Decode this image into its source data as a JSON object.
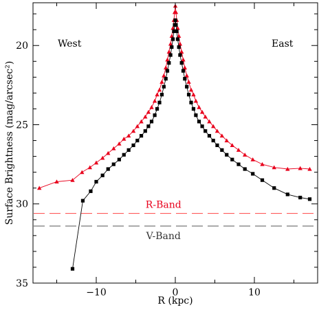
{
  "chart_data": {
    "type": "line",
    "xlabel": "R (kpc)",
    "ylabel": "Surface Brightness (mag/arcsec²)",
    "xlim": [
      -18,
      18
    ],
    "ylim": [
      35,
      17.3
    ],
    "y_inverted": true,
    "x_ticks": [
      -10,
      0,
      10
    ],
    "y_ticks": [
      20,
      25,
      30,
      35
    ],
    "grid": false,
    "annotations": {
      "west": "West",
      "east": "East",
      "r_band": "R-Band",
      "v_band": "V-Band"
    },
    "sky_levels": [
      {
        "name": "R-Band",
        "y": 30.6,
        "color": "#ff5a5a",
        "style": "dashed"
      },
      {
        "name": "V-Band",
        "y": 31.4,
        "color": "#777777",
        "style": "dashed"
      }
    ],
    "series": [
      {
        "color": "#e8001c",
        "marker": "triangle",
        "x": [
          -17.2,
          -15.0,
          -13.0,
          -11.8,
          -10.8,
          -10.0,
          -9.2,
          -8.5,
          -7.8,
          -7.1,
          -6.5,
          -5.9,
          -5.3,
          -4.8,
          -4.3,
          -3.8,
          -3.4,
          -3.0,
          -2.6,
          -2.3,
          -2.0,
          -1.7,
          -1.45,
          -1.2,
          -1.0,
          -0.8,
          -0.6,
          -0.45,
          -0.3,
          -0.18,
          -0.08,
          0.0,
          0.08,
          0.18,
          0.3,
          0.45,
          0.6,
          0.8,
          1.0,
          1.2,
          1.45,
          1.7,
          2.0,
          2.3,
          2.6,
          3.0,
          3.4,
          3.8,
          4.3,
          4.8,
          5.3,
          5.9,
          6.5,
          7.2,
          8.0,
          8.8,
          9.8,
          11.0,
          12.5,
          14.2,
          15.8,
          17.0
        ],
        "y": [
          29.0,
          28.6,
          28.5,
          28.0,
          27.7,
          27.4,
          27.1,
          26.8,
          26.5,
          26.2,
          25.9,
          25.7,
          25.4,
          25.1,
          24.8,
          24.5,
          24.2,
          23.9,
          23.5,
          23.1,
          22.8,
          22.3,
          21.9,
          21.4,
          20.9,
          20.4,
          19.9,
          19.4,
          18.9,
          18.4,
          17.9,
          17.5,
          17.9,
          18.4,
          18.9,
          19.4,
          19.9,
          20.4,
          20.9,
          21.4,
          21.9,
          22.3,
          22.8,
          23.1,
          23.5,
          23.9,
          24.2,
          24.5,
          24.8,
          25.1,
          25.4,
          25.7,
          26.0,
          26.3,
          26.6,
          26.9,
          27.2,
          27.5,
          27.7,
          27.8,
          27.75,
          27.8
        ]
      },
      {
        "color": "#000000",
        "marker": "square",
        "x": [
          -13.0,
          -11.7,
          -10.7,
          -10.0,
          -9.2,
          -8.5,
          -7.8,
          -7.1,
          -6.5,
          -5.9,
          -5.3,
          -4.8,
          -4.3,
          -3.8,
          -3.4,
          -3.0,
          -2.6,
          -2.3,
          -2.0,
          -1.7,
          -1.45,
          -1.2,
          -1.0,
          -0.8,
          -0.6,
          -0.45,
          -0.3,
          -0.18,
          -0.08,
          0.0,
          0.08,
          0.18,
          0.3,
          0.45,
          0.6,
          0.8,
          1.0,
          1.2,
          1.45,
          1.7,
          2.0,
          2.3,
          2.6,
          3.0,
          3.4,
          3.8,
          4.3,
          4.8,
          5.3,
          5.9,
          6.5,
          7.2,
          8.0,
          8.8,
          9.8,
          11.0,
          12.5,
          14.2,
          15.8,
          17.0
        ],
        "y": [
          34.1,
          29.8,
          29.2,
          28.6,
          28.2,
          27.8,
          27.5,
          27.2,
          26.9,
          26.6,
          26.3,
          26.0,
          25.7,
          25.4,
          25.1,
          24.8,
          24.4,
          24.0,
          23.6,
          23.1,
          22.6,
          22.1,
          21.6,
          21.1,
          20.6,
          20.1,
          19.6,
          19.1,
          18.7,
          18.4,
          18.7,
          19.1,
          19.6,
          20.1,
          20.6,
          21.1,
          21.6,
          22.1,
          22.6,
          23.1,
          23.6,
          24.0,
          24.4,
          24.8,
          25.1,
          25.4,
          25.7,
          26.0,
          26.3,
          26.6,
          26.9,
          27.2,
          27.5,
          27.8,
          28.1,
          28.5,
          29.0,
          29.4,
          29.6,
          29.7
        ]
      }
    ]
  }
}
